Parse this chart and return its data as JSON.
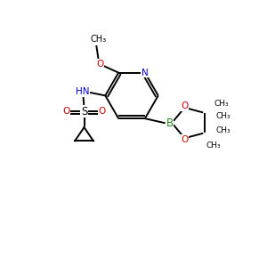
{
  "bg_color": "#ffffff",
  "bond_color": "#000000",
  "N_color": "#0000cc",
  "O_color": "#cc0000",
  "B_color": "#228B22",
  "font_size": 7.0,
  "line_width": 1.4,
  "figsize": [
    3.0,
    3.0
  ],
  "dpi": 100,
  "xlim": [
    0,
    300
  ],
  "ylim": [
    0,
    300
  ]
}
